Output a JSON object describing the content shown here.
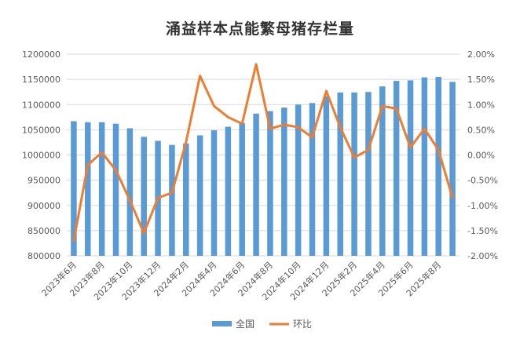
{
  "chart_data": {
    "type": "bar",
    "title": "涌益样本点能繁母猪存栏量",
    "x": [
      "2023年6月",
      "2023年7月",
      "2023年8月",
      "2023年9月",
      "2023年10月",
      "2023年11月",
      "2023年12月",
      "2024年1月",
      "2024年2月",
      "2024年3月",
      "2024年4月",
      "2024年5月",
      "2024年6月",
      "2024年7月",
      "2024年8月",
      "2024年9月",
      "2024年10月",
      "2024年11月",
      "2024年12月",
      "2025年1月",
      "2025年2月",
      "2025年3月",
      "2025年4月",
      "2025年5月",
      "2025年6月",
      "2025年7月",
      "2025年8月",
      "2025年9月"
    ],
    "x_tick_labels": [
      "2023年6月",
      "2023年8月",
      "2023年10月",
      "2023年12月",
      "2024年2月",
      "2024年4月",
      "2024年6月",
      "2024年8月",
      "2024年10月",
      "2024年12月",
      "2025年2月",
      "2025年4月",
      "2025年6月",
      "2025年8月"
    ],
    "series": [
      {
        "name": "全国",
        "type": "bar",
        "axis": "left",
        "color": "#5B9BD5",
        "values": [
          1067000,
          1065000,
          1065000,
          1062000,
          1053000,
          1036000,
          1028000,
          1020000,
          1023000,
          1039000,
          1049000,
          1056000,
          1063000,
          1082000,
          1087000,
          1094000,
          1100000,
          1103000,
          1117000,
          1124000,
          1124000,
          1125000,
          1136000,
          1147000,
          1148000,
          1154000,
          1155000,
          1145000
        ]
      },
      {
        "name": "环比",
        "type": "line",
        "axis": "right",
        "color": "#ED7D31",
        "values": [
          -1.7,
          -0.2,
          0.05,
          -0.3,
          -0.9,
          -1.55,
          -0.85,
          -0.75,
          0.25,
          1.57,
          0.97,
          0.75,
          0.62,
          1.8,
          0.52,
          0.6,
          0.55,
          0.35,
          1.27,
          0.55,
          -0.05,
          0.1,
          0.97,
          0.92,
          0.15,
          0.52,
          0.1,
          -0.85
        ]
      }
    ],
    "y_left": {
      "min": 800000,
      "max": 1200000,
      "step": 50000,
      "tick_labels": [
        "800000",
        "850000",
        "900000",
        "950000",
        "1000000",
        "1050000",
        "1100000",
        "1150000",
        "1200000"
      ]
    },
    "y_right": {
      "min": -2.0,
      "max": 2.0,
      "step": 0.5,
      "tick_labels": [
        "-2.00%",
        "-1.50%",
        "-1.00%",
        "-0.50%",
        "0.00%",
        "0.50%",
        "1.00%",
        "1.50%",
        "2.00%"
      ]
    },
    "grid": true,
    "legend": "bottom"
  }
}
